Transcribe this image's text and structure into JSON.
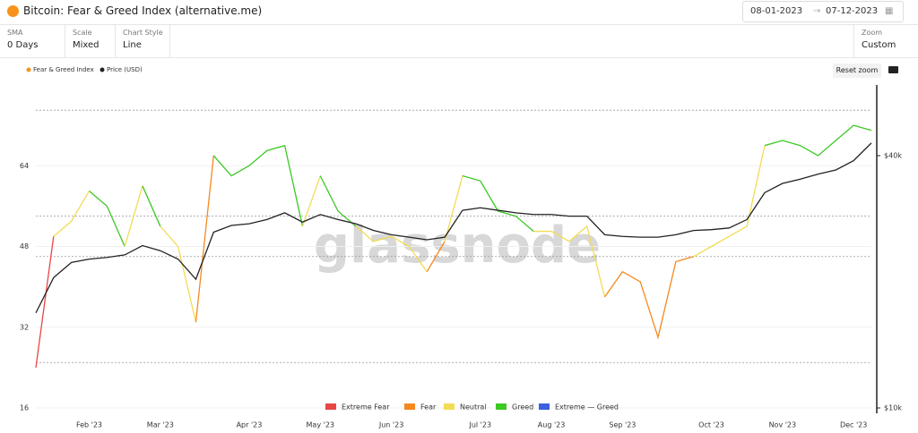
{
  "header": {
    "title": "Bitcoin: Fear & Greed Index (alternative.me)",
    "date_start": "08-01-2023",
    "date_end": "07-12-2023"
  },
  "toolbar": [
    {
      "label": "SMA",
      "value": "0 Days"
    },
    {
      "label": "Scale",
      "value": "Mixed"
    },
    {
      "label": "Chart Style",
      "value": "Line"
    }
  ],
  "zoom": {
    "label": "Zoom",
    "value": "Custom"
  },
  "reset_zoom": "Reset zoom",
  "watermark": "glassnode",
  "chart_data": {
    "type": "line",
    "categories": [
      null,
      null,
      null,
      "Feb '23",
      null,
      null,
      null,
      "Mar '23",
      null,
      null,
      null,
      null,
      "Apr '23",
      null,
      null,
      null,
      "May '23",
      null,
      null,
      null,
      "Jun '23",
      null,
      null,
      null,
      null,
      "Jul '23",
      null,
      null,
      null,
      "Aug '23",
      null,
      null,
      null,
      "Sep '23",
      null,
      null,
      null,
      null,
      "Oct '23",
      null,
      null,
      null,
      "Nov '23",
      null,
      null,
      null,
      "Dec '23",
      null
    ],
    "series": [
      {
        "name": "Fear & Greed Index",
        "color": "#f7931a",
        "values": [
          24,
          50,
          53,
          59,
          56,
          48,
          60,
          52,
          48,
          33,
          66,
          62,
          64,
          67,
          68,
          52,
          62,
          55,
          52,
          49,
          50,
          48,
          43,
          49,
          62,
          61,
          55,
          54,
          51,
          51,
          49,
          52,
          38,
          43,
          41,
          30,
          45,
          46,
          48,
          50,
          52,
          68,
          69,
          68,
          66,
          69,
          72,
          71
        ]
      },
      {
        "name": "Price (USD)",
        "color": "#222222",
        "axis": "y2",
        "values": [
          21300,
          25500,
          27300,
          27700,
          27900,
          28200,
          29300,
          28700,
          27700,
          25300,
          30900,
          31700,
          31900,
          32400,
          33200,
          32100,
          33000,
          32400,
          31900,
          31100,
          30600,
          30300,
          30000,
          30300,
          33500,
          33800,
          33500,
          33200,
          33000,
          33000,
          32800,
          32800,
          30600,
          30400,
          30300,
          30300,
          30600,
          31100,
          31200,
          31400,
          32400,
          35600,
          36700,
          37200,
          37800,
          38300,
          39400,
          41500
        ]
      }
    ],
    "ylim": [
      16,
      80
    ],
    "yticks": [
      16,
      32,
      48,
      64
    ],
    "y2lim": [
      10000,
      48400
    ],
    "y2ticks": [
      {
        "value": 10000,
        "label": "$10k"
      },
      {
        "value": 40000,
        "label": "$40k"
      }
    ],
    "thresholds": [
      25,
      46,
      54,
      75
    ],
    "zones": [
      {
        "name": "Extreme Fear",
        "color": "#e84545"
      },
      {
        "name": "Fear",
        "color": "#f5891f"
      },
      {
        "name": "Neutral",
        "color": "#f2dc55"
      },
      {
        "name": "Greed",
        "color": "#3cc825"
      },
      {
        "name": "Extreme — Greed",
        "color": "#3d5fe0"
      }
    ],
    "grid": true
  }
}
